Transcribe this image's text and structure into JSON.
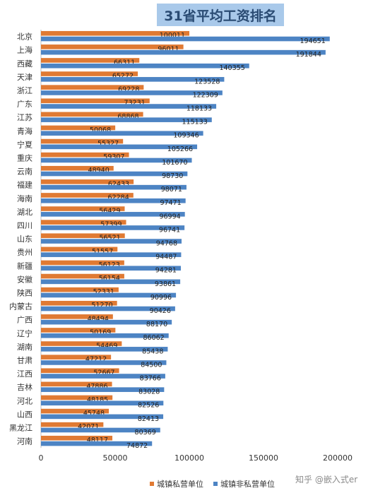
{
  "chart_data": {
    "type": "bar",
    "orientation": "horizontal",
    "title": "31省平均工资排名",
    "categories": [
      "北京",
      "上海",
      "西藏",
      "天津",
      "浙江",
      "广东",
      "江苏",
      "青海",
      "宁夏",
      "重庆",
      "云南",
      "福建",
      "海南",
      "湖北",
      "四川",
      "山东",
      "贵州",
      "新疆",
      "安徽",
      "陕西",
      "内蒙古",
      "广西",
      "辽宁",
      "湖南",
      "甘肃",
      "江西",
      "吉林",
      "河北",
      "山西",
      "黑龙江",
      "河南"
    ],
    "series": [
      {
        "name": "城镇私营单位",
        "color": "#e07a33",
        "values": [
          100011,
          96011,
          66311,
          65272,
          69228,
          73231,
          68868,
          50068,
          55327,
          59307,
          48940,
          62433,
          62284,
          56429,
          57399,
          56521,
          51557,
          56123,
          56154,
          52331,
          51270,
          48494,
          50169,
          54469,
          47212,
          52667,
          47886,
          48185,
          45748,
          42071,
          48117
        ]
      },
      {
        "name": "城镇非私营单位",
        "color": "#4d84c4",
        "values": [
          194651,
          191844,
          140355,
          123528,
          122309,
          118133,
          115133,
          109346,
          105266,
          101670,
          98730,
          98071,
          97471,
          96994,
          96741,
          94768,
          94487,
          94281,
          93861,
          90996,
          90426,
          88170,
          86062,
          85438,
          84500,
          83766,
          83028,
          82526,
          82413,
          80369,
          74872
        ]
      }
    ],
    "xlim": [
      0,
      200000
    ],
    "xticks": [
      "0",
      "50000",
      "100000",
      "150000",
      "200000"
    ],
    "grid": false,
    "legend_position": "bottom"
  },
  "watermark": "知乎 @嵌入式er"
}
